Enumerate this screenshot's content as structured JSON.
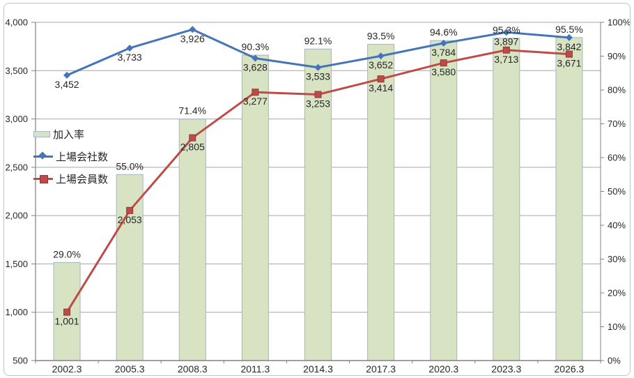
{
  "chart_data": {
    "type": "bar",
    "subtype": "combo-bar-line-dual-axis",
    "title": "",
    "categories": [
      "2002.3",
      "2005.3",
      "2008.3",
      "2011.3",
      "2014.3",
      "2017.3",
      "2020.3",
      "2023.3",
      "2026.3"
    ],
    "series": [
      {
        "name": "加入率",
        "type": "bar",
        "axis": "right",
        "values": [
          29.0,
          55.0,
          71.4,
          90.3,
          92.1,
          93.5,
          94.6,
          95.3,
          95.5
        ],
        "labels": [
          "29.0%",
          "55.0%",
          "71.4%",
          "90.3%",
          "92.1%",
          "93.5%",
          "94.6%",
          "95.3%",
          "95.5%"
        ],
        "fill": "#D8E3C3",
        "stroke": "#9FB5C9"
      },
      {
        "name": "上場会社数",
        "type": "line",
        "axis": "left",
        "marker": "diamond",
        "values": [
          3452,
          3733,
          3926,
          3628,
          3533,
          3652,
          3784,
          3897,
          3842
        ],
        "labels": [
          "3,452",
          "3,733",
          "3,926",
          "3,628",
          "3,533",
          "3,652",
          "3,784",
          "3,897",
          "3,842"
        ],
        "color": "#4575B5"
      },
      {
        "name": "上場会員数",
        "type": "line",
        "axis": "left",
        "marker": "square",
        "values": [
          1001,
          2053,
          2805,
          3277,
          3253,
          3414,
          3580,
          3713,
          3671
        ],
        "labels": [
          "1,001",
          "2,053",
          "2,805",
          "3,277",
          "3,253",
          "3,414",
          "3,580",
          "3,713",
          "3,671"
        ],
        "color": "#BE4B48",
        "marker_stroke": "#8E3835"
      }
    ],
    "left_axis": {
      "min": 500,
      "max": 4000,
      "step": 500,
      "tick_labels": [
        "500",
        "1,000",
        "1,500",
        "2,000",
        "2,500",
        "3,000",
        "3,500",
        "4,000"
      ]
    },
    "right_axis": {
      "min": 0,
      "max": 100,
      "step": 10,
      "suffix": "%",
      "tick_labels": [
        "0%",
        "10%",
        "20%",
        "30%",
        "40%",
        "50%",
        "60%",
        "70%",
        "80%",
        "90%",
        "100%"
      ]
    },
    "grid": true,
    "legend_position": "middle-left",
    "colors": {
      "background": "#FFFFFF",
      "text": "#262626",
      "grid": "#A6A6A6",
      "axis": "#808080",
      "frame_border": "#C3C3C3"
    }
  }
}
